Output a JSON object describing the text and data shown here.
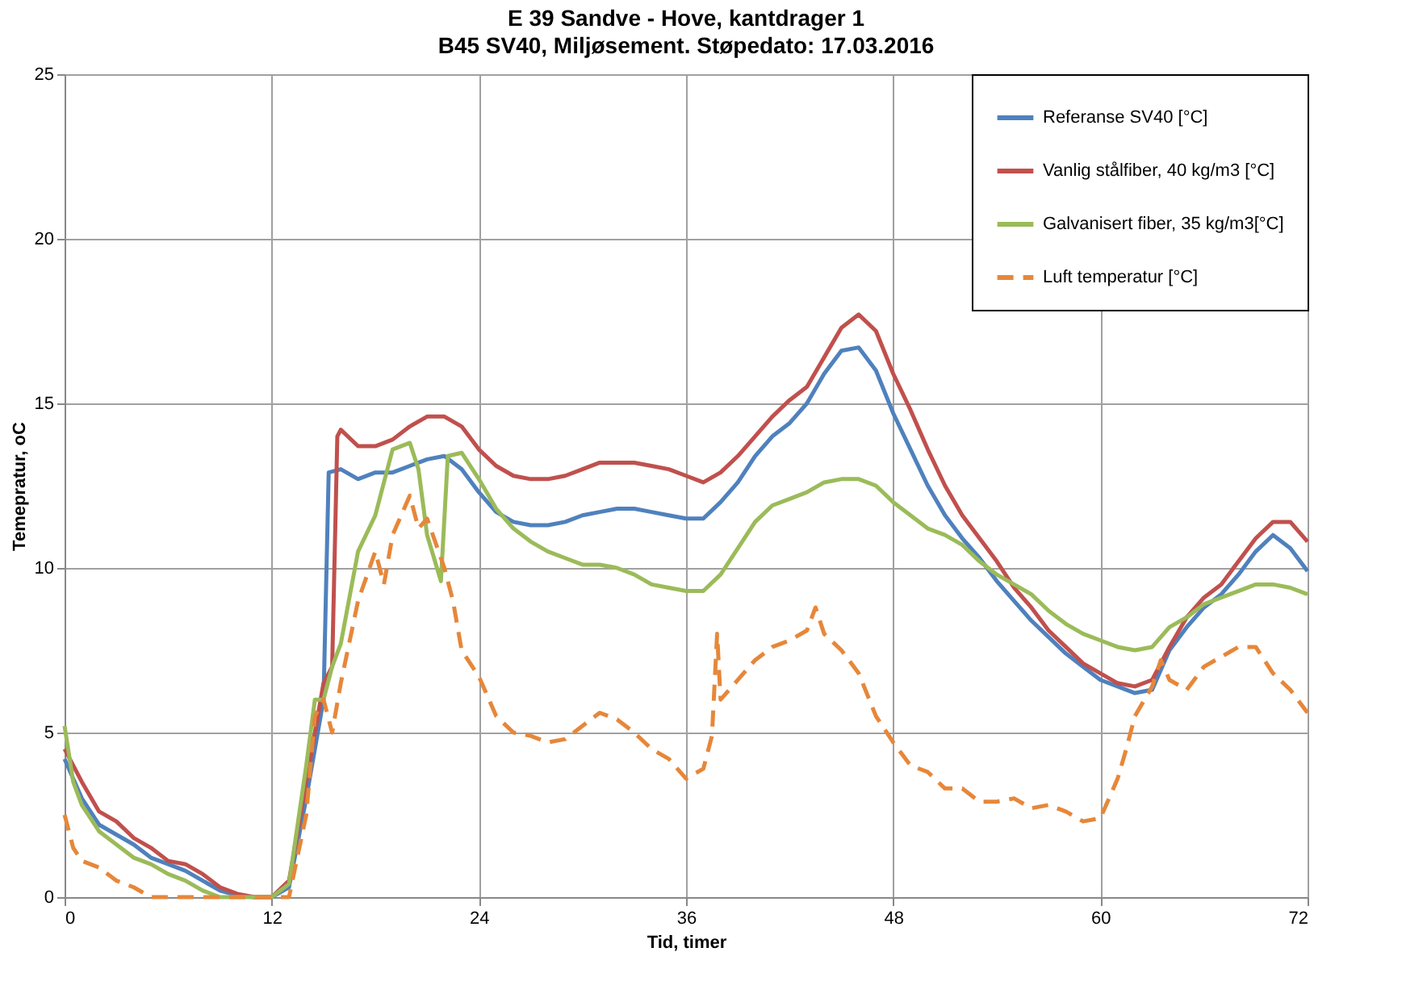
{
  "chart_data": {
    "type": "line",
    "title": "E 39 Sandve - Hove, kantdrager 1",
    "subtitle": "B45 SV40, Miljøsement. Støpedato: 17.03.2016",
    "xlabel": "Tid, timer",
    "ylabel": "Temepratur, oC",
    "xlim": [
      0,
      72
    ],
    "xticks": [
      0,
      12,
      24,
      36,
      48,
      60,
      72
    ],
    "ylim": [
      0,
      25
    ],
    "yticks": [
      0,
      5,
      10,
      15,
      20,
      25
    ],
    "grid": true,
    "legend": "top right",
    "marker": "none",
    "series": [
      {
        "name": "Referanse SV40 [°C]",
        "color": "#4f81bd",
        "line_style": "solid",
        "x": [
          0,
          1,
          2,
          3,
          4,
          5,
          6,
          7,
          8,
          9,
          10,
          11,
          12,
          13,
          14,
          15,
          15.3,
          16,
          17,
          18,
          19,
          20,
          21,
          22,
          23,
          24,
          25,
          26,
          27,
          28,
          29,
          30,
          31,
          32,
          33,
          34,
          35,
          36,
          37,
          38,
          39,
          40,
          41,
          42,
          43,
          44,
          45,
          46,
          47,
          48,
          49,
          50,
          51,
          52,
          53,
          54,
          55,
          56,
          57,
          58,
          59,
          60,
          61,
          62,
          63,
          64,
          65,
          66,
          67,
          68,
          69,
          70,
          71,
          72
        ],
        "values": [
          4.2,
          3,
          2.2,
          1.9,
          1.6,
          1.2,
          1.0,
          0.8,
          0.5,
          0.2,
          0.05,
          0,
          0,
          0.3,
          3,
          6,
          12.9,
          13,
          12.7,
          12.9,
          12.9,
          13.1,
          13.3,
          13.4,
          13.0,
          12.3,
          11.7,
          11.4,
          11.3,
          11.3,
          11.4,
          11.6,
          11.7,
          11.8,
          11.8,
          11.7,
          11.6,
          11.5,
          11.5,
          12,
          12.6,
          13.4,
          14.0,
          14.4,
          15.0,
          15.9,
          16.6,
          16.7,
          16.0,
          14.7,
          13.6,
          12.5,
          11.6,
          10.9,
          10.3,
          9.6,
          9.0,
          8.4,
          7.9,
          7.4,
          7.0,
          6.6,
          6.4,
          6.2,
          6.3,
          7.5,
          8.2,
          8.8,
          9.2,
          9.8,
          10.5,
          11.0,
          10.6,
          9.9
        ]
      },
      {
        "name": "Vanlig stålfiber, 40 kg/m3 [°C]",
        "color": "#c0504d",
        "line_style": "solid",
        "x": [
          0,
          1,
          2,
          3,
          4,
          5,
          6,
          7,
          8,
          9,
          10,
          11,
          12,
          13,
          14,
          15,
          15.5,
          15.8,
          16,
          17,
          18,
          19,
          20,
          21,
          22,
          23,
          24,
          25,
          26,
          27,
          28,
          29,
          30,
          31,
          32,
          33,
          34,
          35,
          36,
          37,
          38,
          39,
          40,
          41,
          42,
          43,
          44,
          45,
          46,
          47,
          48,
          49,
          50,
          51,
          52,
          53,
          54,
          55,
          56,
          57,
          58,
          59,
          60,
          61,
          62,
          63,
          64,
          65,
          66,
          67,
          68,
          69,
          70,
          71,
          72
        ],
        "values": [
          4.5,
          3.5,
          2.6,
          2.3,
          1.8,
          1.5,
          1.1,
          1.0,
          0.7,
          0.3,
          0.1,
          0,
          0,
          0.5,
          3.5,
          6.5,
          7,
          14,
          14.2,
          13.7,
          13.7,
          13.9,
          14.3,
          14.6,
          14.6,
          14.3,
          13.6,
          13.1,
          12.8,
          12.7,
          12.7,
          12.8,
          13.0,
          13.2,
          13.2,
          13.2,
          13.1,
          13.0,
          12.8,
          12.6,
          12.9,
          13.4,
          14.0,
          14.6,
          15.1,
          15.5,
          16.4,
          17.3,
          17.7,
          17.2,
          15.9,
          14.8,
          13.6,
          12.5,
          11.6,
          10.9,
          10.2,
          9.4,
          8.8,
          8.1,
          7.6,
          7.1,
          6.8,
          6.5,
          6.4,
          6.6,
          7.6,
          8.5,
          9.1,
          9.5,
          10.2,
          10.9,
          11.4,
          11.4,
          10.8
        ]
      },
      {
        "name": "Galvanisert fiber, 35 kg/m3[°C]",
        "color": "#9bbb59",
        "line_style": "solid",
        "x": [
          0,
          0.5,
          1,
          2,
          3,
          4,
          5,
          6,
          7,
          8,
          9,
          10,
          12,
          13,
          14,
          14.5,
          15,
          15.5,
          16,
          17,
          18,
          19,
          20,
          20.5,
          21,
          21.8,
          22.2,
          23,
          24,
          25,
          26,
          27,
          28,
          29,
          30,
          31,
          32,
          33,
          34,
          35,
          36,
          37,
          38,
          39,
          40,
          41,
          42,
          43,
          44,
          45,
          46,
          47,
          48,
          49,
          50,
          51,
          52,
          53,
          54,
          55,
          56,
          57,
          58,
          59,
          60,
          61,
          62,
          63,
          64,
          65,
          66,
          67,
          68,
          69,
          70,
          71,
          72
        ],
        "values": [
          5.2,
          3.5,
          2.8,
          2,
          1.6,
          1.2,
          1.0,
          0.7,
          0.5,
          0.2,
          0,
          0,
          0,
          0.4,
          4,
          6,
          6,
          7,
          7.7,
          10.5,
          11.6,
          13.6,
          13.8,
          13,
          11,
          9.6,
          13.4,
          13.5,
          12.7,
          11.8,
          11.2,
          10.8,
          10.5,
          10.3,
          10.1,
          10.1,
          10.0,
          9.8,
          9.5,
          9.4,
          9.3,
          9.3,
          9.8,
          10.6,
          11.4,
          11.9,
          12.1,
          12.3,
          12.6,
          12.7,
          12.7,
          12.5,
          12.0,
          11.6,
          11.2,
          11.0,
          10.7,
          10.2,
          9.8,
          9.5,
          9.2,
          8.7,
          8.3,
          8.0,
          7.8,
          7.6,
          7.5,
          7.6,
          8.2,
          8.5,
          8.9,
          9.1,
          9.3,
          9.5,
          9.5,
          9.4,
          9.2
        ]
      },
      {
        "name": "Luft temperatur [°C]",
        "color": "#e6873a",
        "line_style": "dashed",
        "x": [
          0,
          0.5,
          1,
          2,
          3,
          4,
          5,
          12,
          13,
          14,
          14.5,
          15,
          15.5,
          16,
          17,
          18,
          18.5,
          19,
          20,
          20.5,
          21,
          22,
          22.5,
          23,
          24,
          25,
          26,
          27,
          28,
          29,
          30,
          31,
          32,
          33,
          34,
          35,
          36,
          37,
          37.5,
          37.8,
          38,
          39,
          40,
          41,
          42,
          43,
          43.5,
          44,
          45,
          46,
          47,
          48,
          49,
          50,
          51,
          52,
          53,
          54,
          55,
          56,
          57,
          58,
          59,
          60,
          61,
          61.5,
          62,
          63,
          63.5,
          64,
          65,
          66,
          67,
          68,
          69,
          70,
          71,
          72
        ],
        "values": [
          2.5,
          1.5,
          1.1,
          0.9,
          0.5,
          0.3,
          0,
          0,
          0,
          2.5,
          5.5,
          6,
          5,
          6.5,
          9,
          10.5,
          9.5,
          11,
          12.2,
          11.2,
          11.5,
          10,
          9,
          7.5,
          6.7,
          5.5,
          5.0,
          4.9,
          4.7,
          4.8,
          5.2,
          5.6,
          5.4,
          5.0,
          4.5,
          4.2,
          3.6,
          3.9,
          4.9,
          8.0,
          6.0,
          6.6,
          7.2,
          7.6,
          7.8,
          8.1,
          8.8,
          8.0,
          7.5,
          6.8,
          5.5,
          4.7,
          4.0,
          3.8,
          3.3,
          3.3,
          2.9,
          2.9,
          3.0,
          2.7,
          2.8,
          2.6,
          2.3,
          2.4,
          3.6,
          4.5,
          5.5,
          6.4,
          7.2,
          6.6,
          6.3,
          7.0,
          7.3,
          7.6,
          7.6,
          6.8,
          6.3,
          5.6
        ]
      }
    ]
  }
}
